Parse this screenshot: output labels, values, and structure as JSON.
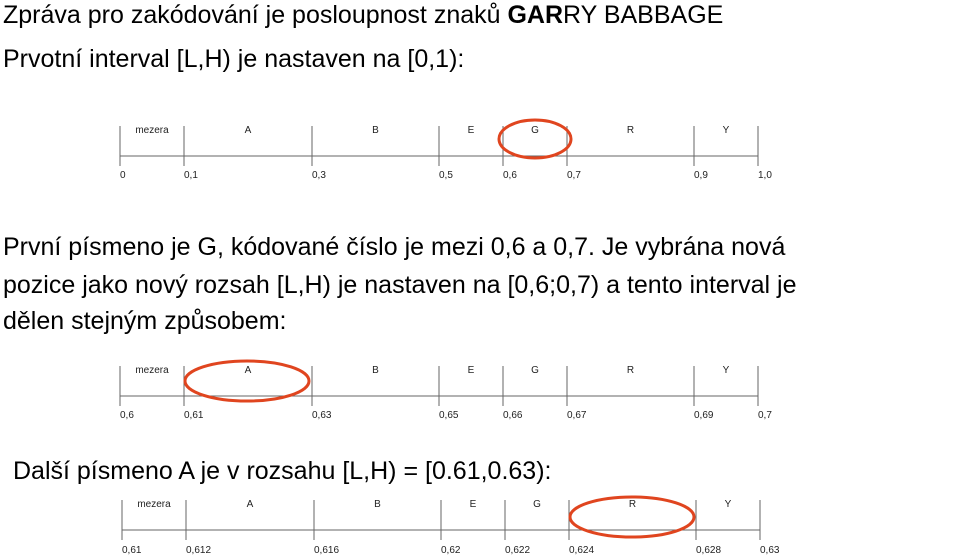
{
  "intro": {
    "line1_prefix": "Zpráva pro zakódování je posloupnost znaků ",
    "line1_bold": "GAR",
    "line1_suffix": "RY BABBAGE",
    "line2": "Prvotní interval [L,H) je nastaven na [0,1):"
  },
  "paragraph2": {
    "line1": "První písmeno je G, kódované číslo je mezi 0,6 a 0,7. Je vybrána nová",
    "line2": "pozice jako nový rozsah [L,H) je nastaven na [0,6;0,7) a tento interval je",
    "line3": "dělen stejným způsobem:"
  },
  "paragraph3": {
    "line1": "Další písmeno A je v rozsahu [L,H) =  [0.61,0.63):"
  },
  "diagrams": [
    {
      "segments": [
        "mezera",
        "A",
        "B",
        "E",
        "G",
        "R",
        "Y"
      ],
      "ticks": [
        "0",
        "0,1",
        "0,3",
        "0,5",
        "0,6",
        "0,7",
        "0,9",
        "1,0"
      ],
      "highlight": "G"
    },
    {
      "segments": [
        "mezera",
        "A",
        "B",
        "E",
        "G",
        "R",
        "Y"
      ],
      "ticks": [
        "0,6",
        "0,61",
        "0,63",
        "0,65",
        "0,66",
        "0,67",
        "0,69",
        "0,7"
      ],
      "highlight": "A"
    },
    {
      "segments": [
        "mezera",
        "A",
        "B",
        "E",
        "G",
        "R",
        "Y"
      ],
      "ticks": [
        "0,61",
        "0,612",
        "0,616",
        "0,62",
        "0,622",
        "0,624",
        "0,628",
        "0,63"
      ],
      "highlight": "R"
    }
  ],
  "colors": {
    "highlight": "#e0451f",
    "axis": "#666666"
  }
}
